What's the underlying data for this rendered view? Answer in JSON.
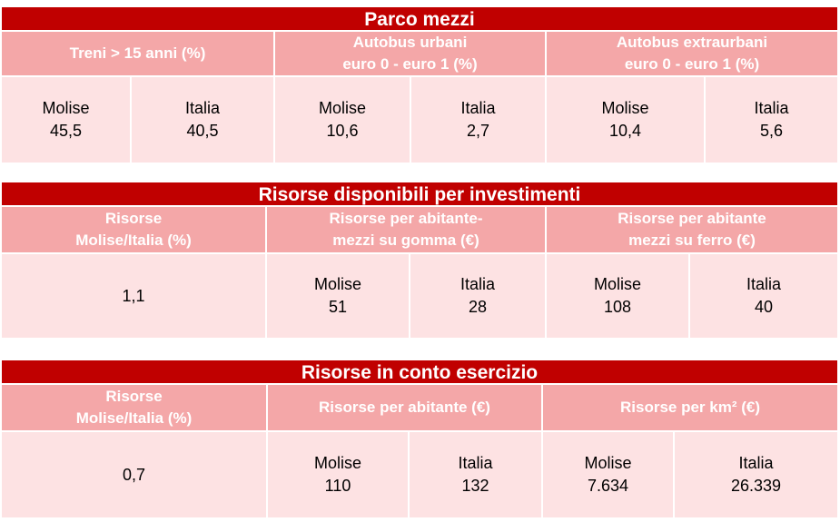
{
  "s1": {
    "title": "Parco mezzi",
    "headers": [
      {
        "line1": "Treni > 15 anni (%)",
        "line2": ""
      },
      {
        "line1": "Autobus urbani",
        "line2": "euro 0 - euro 1 (%)"
      },
      {
        "line1": "Autobus extraurbani",
        "line2": "euro 0 - euro 1 (%)"
      }
    ],
    "values": [
      {
        "label": "Molise",
        "value": "45,5"
      },
      {
        "label": "Italia",
        "value": "40,5"
      },
      {
        "label": "Molise",
        "value": "10,6"
      },
      {
        "label": "Italia",
        "value": "2,7"
      },
      {
        "label": "Molise",
        "value": "10,4"
      },
      {
        "label": "Italia",
        "value": "5,6"
      }
    ]
  },
  "s2": {
    "title": "Risorse disponibili per investimenti",
    "headers": [
      {
        "line1": "Risorse",
        "line2": "Molise/Italia (%)"
      },
      {
        "line1": "Risorse per abitante-",
        "line2": "mezzi su gomma (€)"
      },
      {
        "line1": "Risorse per abitante",
        "line2": "mezzi su ferro (€)"
      }
    ],
    "single": "1,1",
    "values": [
      {
        "label": "Molise",
        "value": "51"
      },
      {
        "label": "Italia",
        "value": "28"
      },
      {
        "label": "Molise",
        "value": "108"
      },
      {
        "label": "Italia",
        "value": "40"
      }
    ]
  },
  "s3": {
    "title": "Risorse in conto esercizio",
    "headers": [
      {
        "line1": "Risorse",
        "line2": "Molise/Italia (%)"
      },
      {
        "line1": "Risorse per abitante (€)",
        "line2": ""
      },
      {
        "line1": "Risorse per km² (€)",
        "line2": ""
      }
    ],
    "single": "0,7",
    "values": [
      {
        "label": "Molise",
        "value": "110"
      },
      {
        "label": "Italia",
        "value": "132"
      },
      {
        "label": "Molise",
        "value": "7.634"
      },
      {
        "label": "Italia",
        "value": "26.339"
      }
    ]
  }
}
